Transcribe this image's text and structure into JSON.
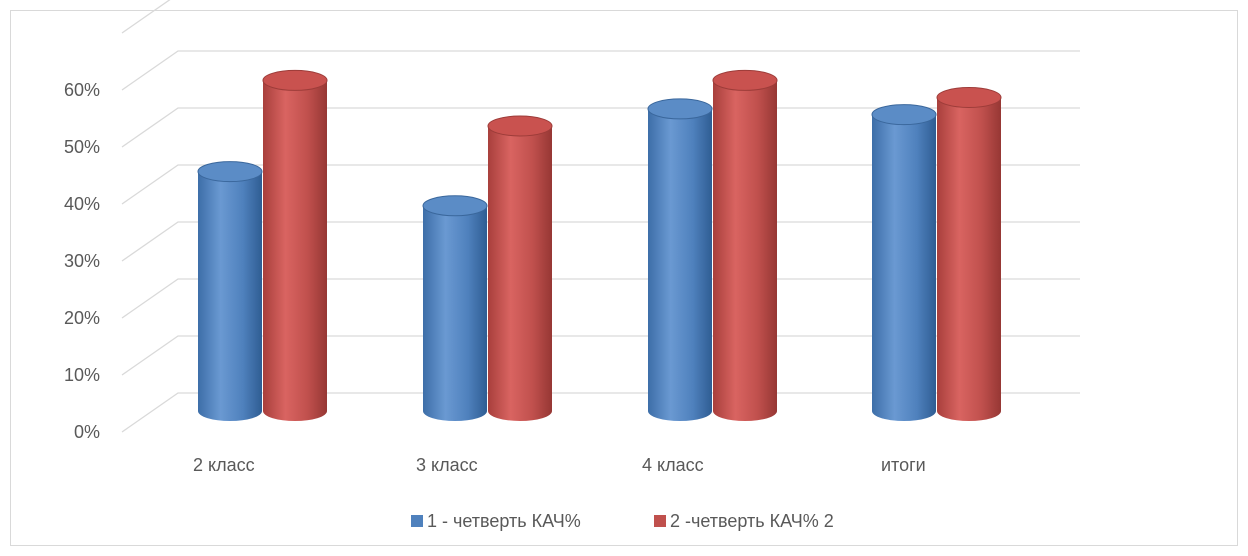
{
  "chart_data": {
    "type": "bar",
    "style": "3d-cylinder",
    "categories": [
      "2 класс",
      "3 класс",
      "4 класс",
      "итоги"
    ],
    "series": [
      {
        "name": "1 - четверть КАЧ%",
        "color": "#4f81bd",
        "values": [
          42,
          36,
          53,
          52
        ]
      },
      {
        "name": "2 -четверть КАЧ% 2",
        "color": "#c0504d",
        "values": [
          58,
          50,
          58,
          55
        ]
      }
    ],
    "y_ticks": [
      "0%",
      "10%",
      "20%",
      "30%",
      "40%",
      "50%",
      "60%"
    ],
    "ylim": [
      0,
      60
    ],
    "grid": true,
    "legend_position": "bottom"
  }
}
